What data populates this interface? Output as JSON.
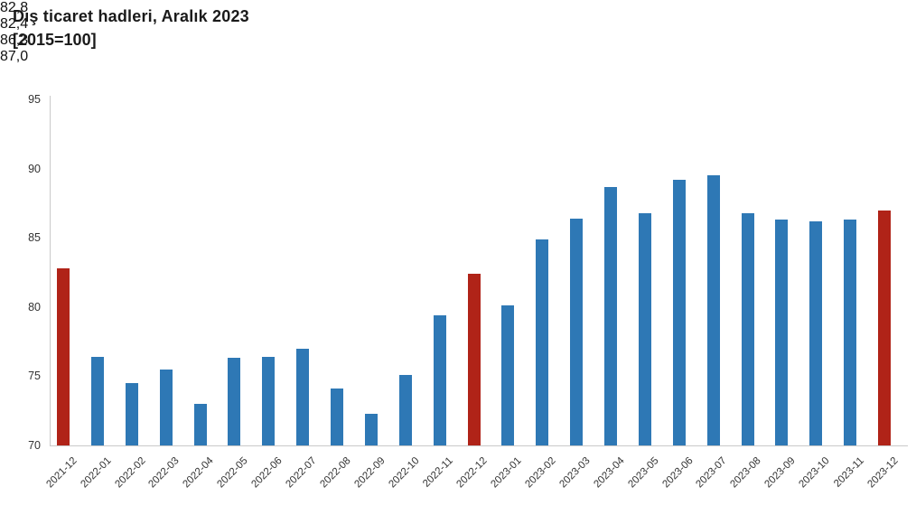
{
  "header": {
    "title": "Dış ticaret hadleri, Aralık 2023",
    "subtitle": "[2015=100]"
  },
  "colors": {
    "bar_blue": "#2e78b5",
    "bar_red": "#b02318",
    "axis_line": "#c9c9c9",
    "tick_text": "#333333",
    "label_text": "#111111"
  },
  "chart_data": {
    "type": "bar",
    "title": "Dış ticaret hadleri, Aralık 2023",
    "subtitle": "[2015=100]",
    "xlabel": "",
    "ylabel": "",
    "ylim": [
      70,
      95
    ],
    "yticks": [
      70,
      75,
      80,
      85,
      90,
      95
    ],
    "grid": false,
    "legend": "none",
    "categories": [
      "2021-12",
      "2022-01",
      "2022-02",
      "2022-03",
      "2022-04",
      "2022-05",
      "2022-06",
      "2022-07",
      "2022-08",
      "2022-09",
      "2022-10",
      "2022-11",
      "2022-12",
      "2023-01",
      "2023-02",
      "2023-03",
      "2023-04",
      "2023-05",
      "2023-06",
      "2023-07",
      "2023-08",
      "2023-09",
      "2023-10",
      "2023-11",
      "2023-12"
    ],
    "values": [
      82.8,
      76.4,
      74.5,
      75.5,
      73.0,
      76.3,
      76.4,
      77.0,
      74.1,
      72.3,
      75.1,
      79.4,
      82.4,
      80.1,
      84.9,
      86.4,
      88.7,
      86.8,
      89.2,
      89.5,
      86.8,
      86.3,
      86.2,
      86.3,
      87.0
    ],
    "highlight_indices": [
      0,
      12,
      24
    ],
    "data_labels": {
      "0": "82,8",
      "12": "82,4",
      "23": "86,3",
      "24": "87,0"
    }
  }
}
